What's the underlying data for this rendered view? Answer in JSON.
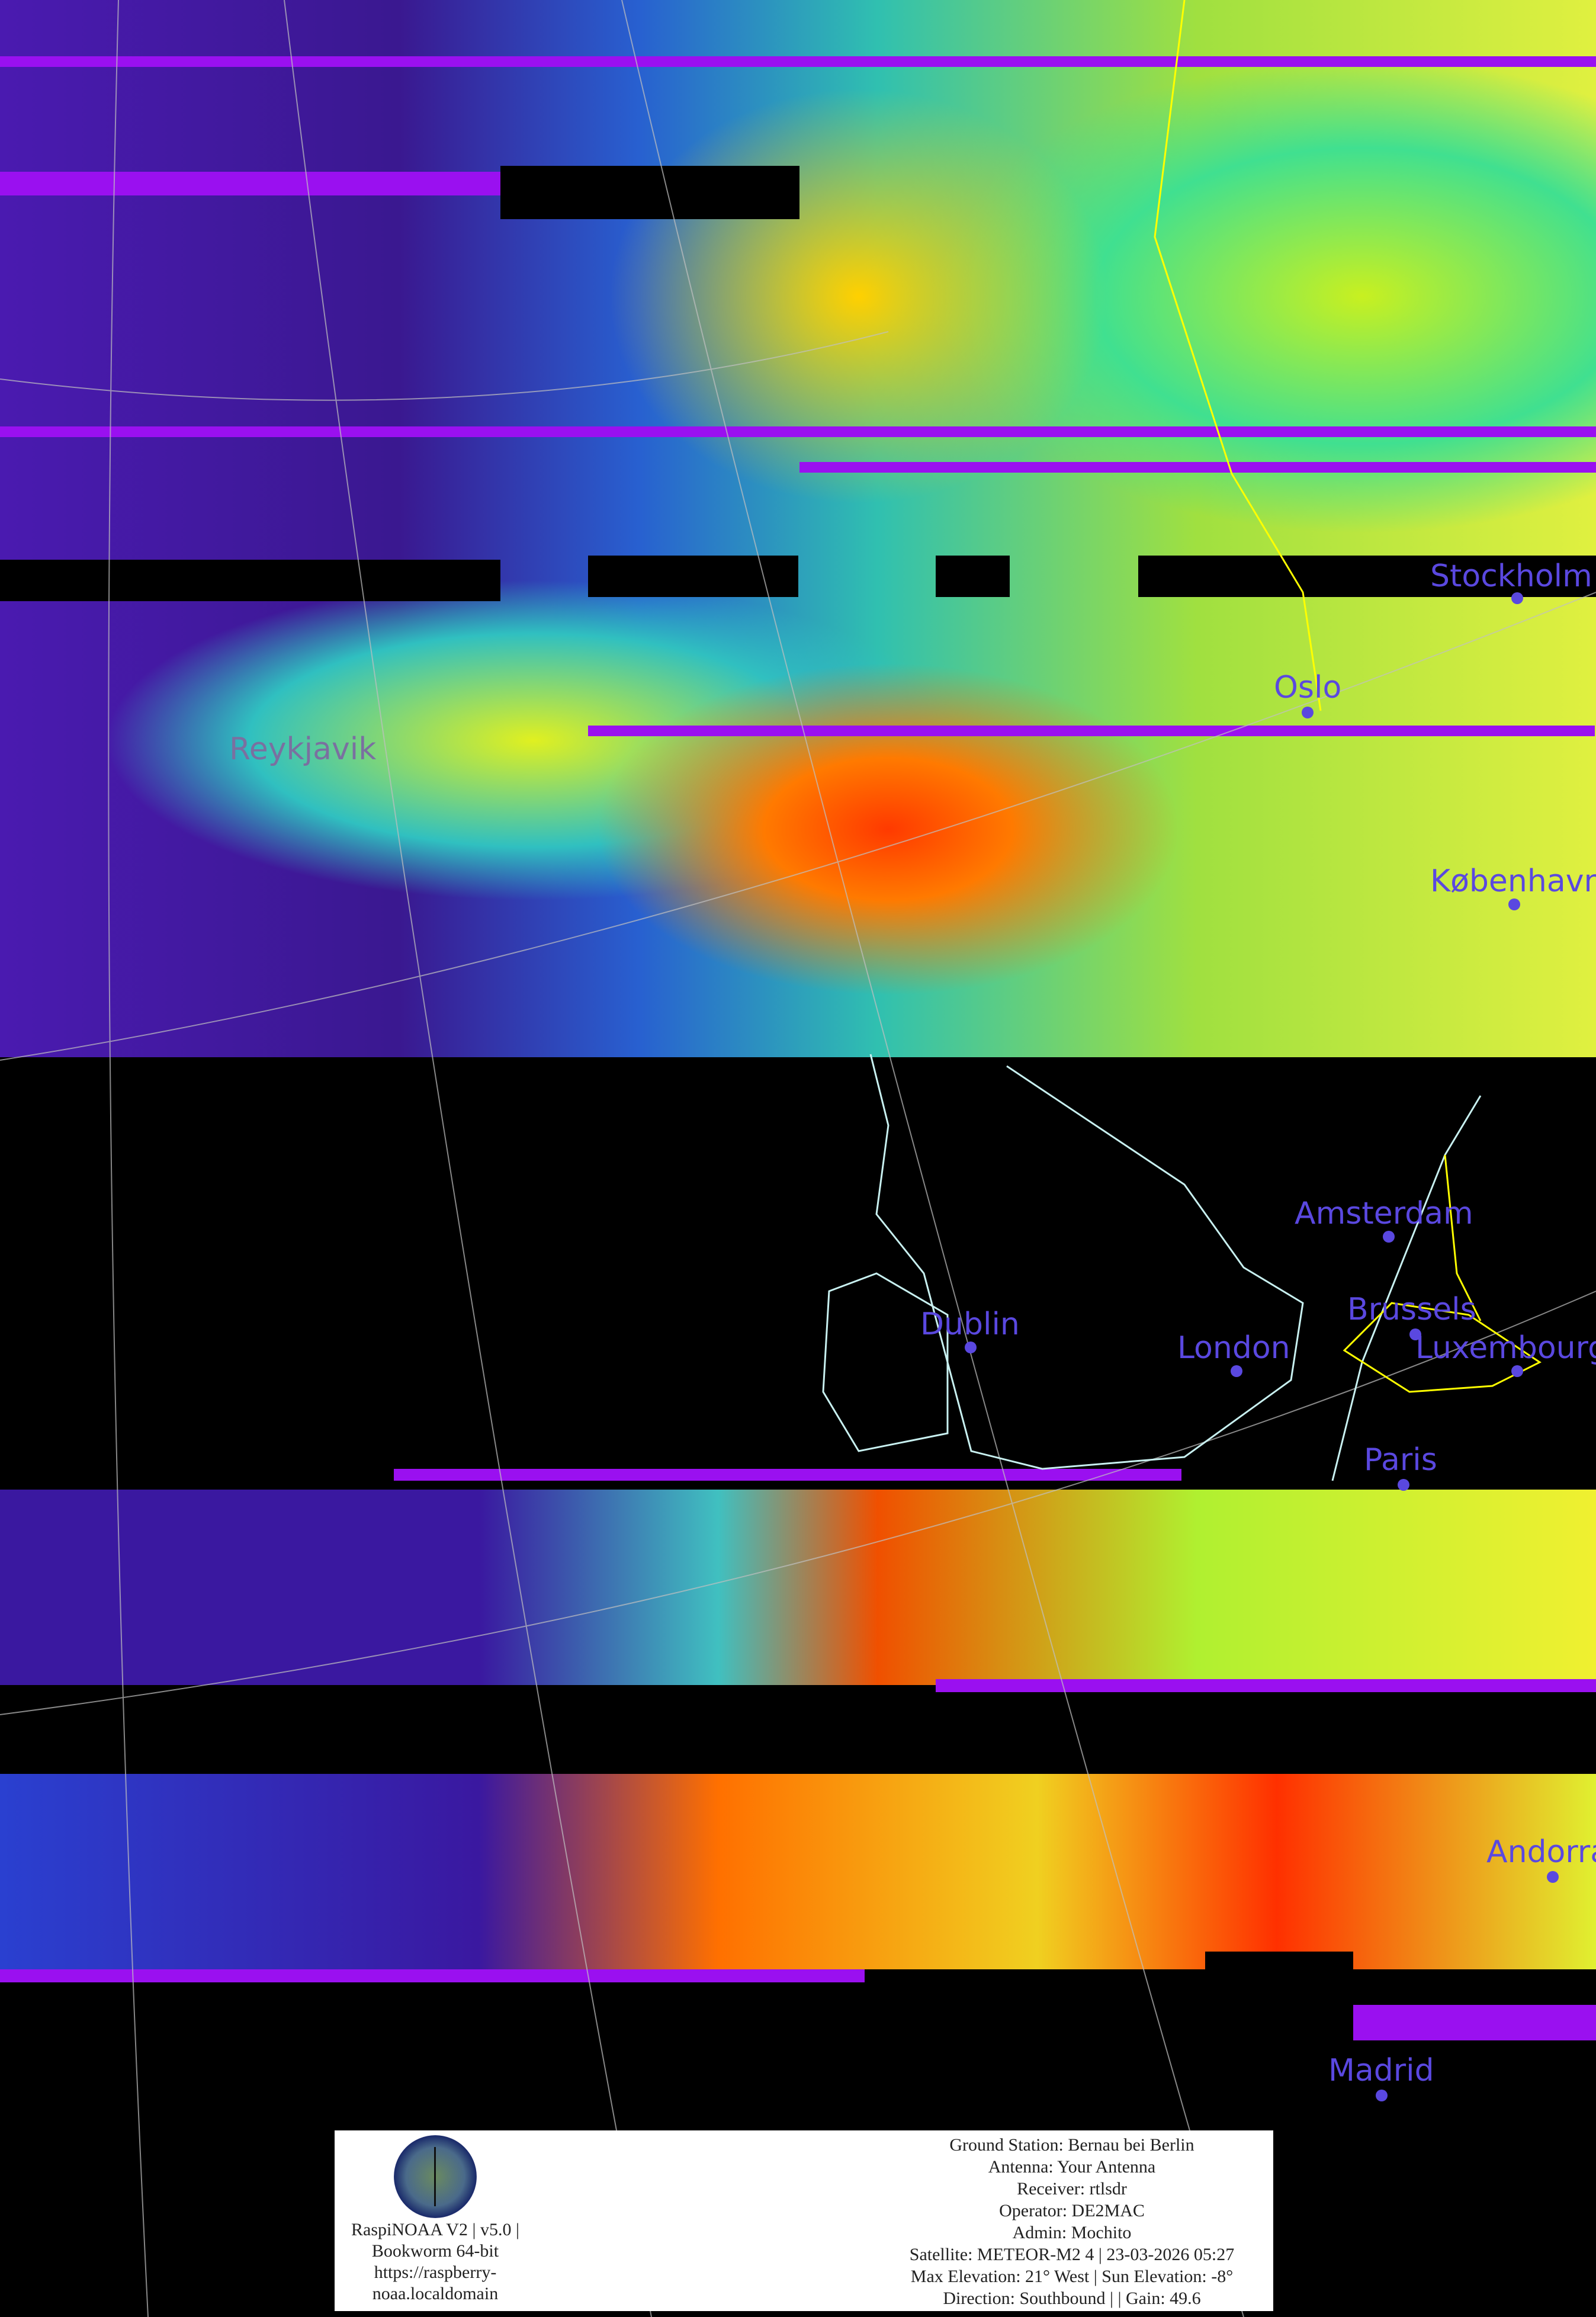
{
  "cities": [
    {
      "name": "Stockholm"
    },
    {
      "name": "Oslo"
    },
    {
      "name": "Reykjavik"
    },
    {
      "name": "København"
    },
    {
      "name": "Amsterdam"
    },
    {
      "name": "Dublin"
    },
    {
      "name": "London"
    },
    {
      "name": "Brussels"
    },
    {
      "name": "Luxembourg"
    },
    {
      "name": "Paris"
    },
    {
      "name": "Andorra"
    },
    {
      "name": "Madrid"
    }
  ],
  "info": {
    "left_lines": [
      "RaspiNOAA V2 | v5.0 |",
      "Bookworm 64-bit",
      "https://raspberry-",
      "noaa.localdomain"
    ],
    "right_lines": [
      "Ground Station: Bernau bei Berlin",
      "Antenna: Your Antenna",
      "Receiver: rtlsdr",
      "Operator: DE2MAC",
      "Admin: Mochito",
      "Satellite: METEOR-M2 4 | 23-03-2026 05:27",
      "Max Elevation: 21° West | Sun Elevation: -8°",
      "Direction: Southbound | | Gain: 49.6"
    ]
  },
  "colors": {
    "city_label": "#5a48e0",
    "coastline": "#c8f0f0",
    "border": "#ffff00",
    "grid": "#c0c0c0"
  }
}
